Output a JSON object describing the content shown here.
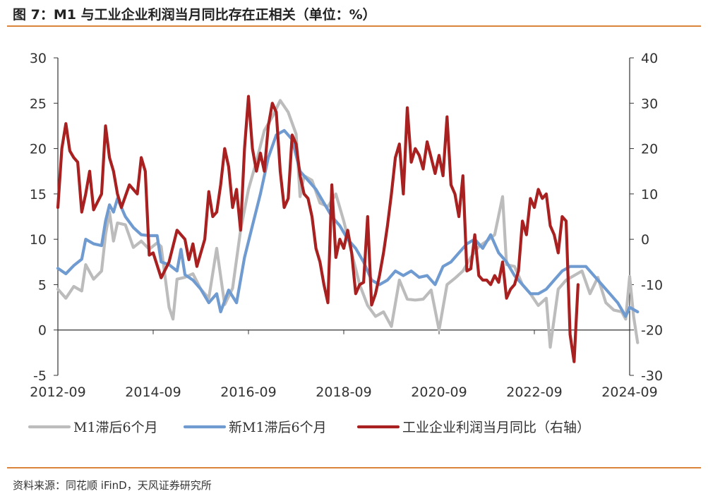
{
  "header": {
    "title": "图 7：M1 与工业企业利润当月同比存在正相关（单位：%）"
  },
  "footer": {
    "source": "资料来源：同花顺 iFinD，天风证券研究所"
  },
  "chart_data": {
    "type": "line",
    "title": "图 7：M1 与工业企业利润当月同比存在正相关（单位：%）",
    "xlabel": "",
    "ylabel": "",
    "x_ticks": [
      "2012-09",
      "2014-09",
      "2016-09",
      "2018-09",
      "2020-09",
      "2022-09",
      "2024-09"
    ],
    "x_range": [
      "2012-09",
      "2024-09"
    ],
    "ylim_left": [
      -5,
      30
    ],
    "ylim_right": [
      -30,
      40
    ],
    "y_ticks_left": [
      30,
      25,
      20,
      15,
      10,
      5,
      0,
      -5
    ],
    "y_ticks_right": [
      40,
      30,
      20,
      10,
      0,
      -10,
      -20,
      -30
    ],
    "grid": false,
    "legend_position": "bottom",
    "series": [
      {
        "name": "M1滞后6个月",
        "axis": "left",
        "color": "#bcbcbc",
        "points": [
          [
            "2012-09",
            4.5
          ],
          [
            "2012-11",
            3.5
          ],
          [
            "2013-01",
            4.8
          ],
          [
            "2013-03",
            4.3
          ],
          [
            "2013-04",
            7.2
          ],
          [
            "2013-06",
            5.6
          ],
          [
            "2013-08",
            6.5
          ],
          [
            "2013-09",
            10.5
          ],
          [
            "2013-10",
            13.0
          ],
          [
            "2013-11",
            9.8
          ],
          [
            "2013-12",
            11.8
          ],
          [
            "2014-02",
            11.6
          ],
          [
            "2014-04",
            9.1
          ],
          [
            "2014-06",
            9.8
          ],
          [
            "2014-08",
            8.9
          ],
          [
            "2014-10",
            9.6
          ],
          [
            "2014-11",
            9.2
          ],
          [
            "2015-01",
            2.5
          ],
          [
            "2015-02",
            1.2
          ],
          [
            "2015-03",
            5.6
          ],
          [
            "2015-05",
            5.8
          ],
          [
            "2015-07",
            6.2
          ],
          [
            "2015-09",
            4.5
          ],
          [
            "2015-11",
            3.5
          ],
          [
            "2016-01",
            9.0
          ],
          [
            "2016-03",
            2.8
          ],
          [
            "2016-05",
            4.6
          ],
          [
            "2016-07",
            11.0
          ],
          [
            "2016-09",
            15.5
          ],
          [
            "2016-11",
            18.6
          ],
          [
            "2017-01",
            22.0
          ],
          [
            "2017-03",
            23.5
          ],
          [
            "2017-05",
            25.3
          ],
          [
            "2017-07",
            24.0
          ],
          [
            "2017-09",
            21.6
          ],
          [
            "2017-10",
            14.7
          ],
          [
            "2017-11",
            17.0
          ],
          [
            "2018-01",
            16.5
          ],
          [
            "2018-03",
            14.0
          ],
          [
            "2018-05",
            13.6
          ],
          [
            "2018-07",
            15.0
          ],
          [
            "2018-09",
            12.0
          ],
          [
            "2018-11",
            8.5
          ],
          [
            "2019-01",
            5.0
          ],
          [
            "2019-03",
            2.7
          ],
          [
            "2019-05",
            1.5
          ],
          [
            "2019-07",
            2.0
          ],
          [
            "2019-09",
            0.4
          ],
          [
            "2019-11",
            5.5
          ],
          [
            "2020-01",
            3.4
          ],
          [
            "2020-03",
            3.3
          ],
          [
            "2020-05",
            3.4
          ],
          [
            "2020-07",
            4.4
          ],
          [
            "2020-09",
            0.0
          ],
          [
            "2020-11",
            5.0
          ],
          [
            "2021-01",
            5.7
          ],
          [
            "2021-03",
            6.5
          ],
          [
            "2021-05",
            8.0
          ],
          [
            "2021-07",
            9.2
          ],
          [
            "2021-09",
            9.8
          ],
          [
            "2021-11",
            10.5
          ],
          [
            "2022-01",
            14.7
          ],
          [
            "2022-02",
            7.2
          ],
          [
            "2022-04",
            7.0
          ],
          [
            "2022-06",
            5.0
          ],
          [
            "2022-08",
            4.0
          ],
          [
            "2022-10",
            2.7
          ],
          [
            "2022-12",
            3.5
          ],
          [
            "2023-01",
            -1.9
          ],
          [
            "2023-03",
            4.5
          ],
          [
            "2023-05",
            5.5
          ],
          [
            "2023-07",
            6.0
          ],
          [
            "2023-09",
            6.5
          ],
          [
            "2023-11",
            4.0
          ],
          [
            "2024-01",
            5.8
          ],
          [
            "2024-03",
            3.0
          ],
          [
            "2024-05",
            2.2
          ],
          [
            "2024-07",
            2.0
          ],
          [
            "2024-08",
            1.2
          ],
          [
            "2024-09",
            5.9
          ],
          [
            "2024-10",
            1.5
          ],
          [
            "2024-11",
            -1.4
          ]
        ]
      },
      {
        "name": "新M1滞后6个月",
        "axis": "left",
        "color": "#6f9bd1",
        "points": [
          [
            "2012-09",
            6.8
          ],
          [
            "2012-11",
            6.2
          ],
          [
            "2013-01",
            7.1
          ],
          [
            "2013-03",
            7.8
          ],
          [
            "2013-04",
            10.0
          ],
          [
            "2013-06",
            9.5
          ],
          [
            "2013-08",
            9.3
          ],
          [
            "2013-09",
            12.0
          ],
          [
            "2013-10",
            13.8
          ],
          [
            "2013-11",
            13.0
          ],
          [
            "2013-12",
            14.5
          ],
          [
            "2014-02",
            12.5
          ],
          [
            "2014-04",
            11.3
          ],
          [
            "2014-06",
            10.5
          ],
          [
            "2014-08",
            10.4
          ],
          [
            "2014-10",
            10.4
          ],
          [
            "2014-11",
            7.5
          ],
          [
            "2015-01",
            7.2
          ],
          [
            "2015-03",
            6.5
          ],
          [
            "2015-04",
            8.9
          ],
          [
            "2015-05",
            6.1
          ],
          [
            "2015-07",
            5.5
          ],
          [
            "2015-09",
            4.5
          ],
          [
            "2015-11",
            3.0
          ],
          [
            "2016-01",
            4.0
          ],
          [
            "2016-02",
            2.0
          ],
          [
            "2016-04",
            4.4
          ],
          [
            "2016-06",
            3.0
          ],
          [
            "2016-08",
            8.0
          ],
          [
            "2016-10",
            11.5
          ],
          [
            "2016-12",
            15.0
          ],
          [
            "2017-02",
            19.0
          ],
          [
            "2017-04",
            21.5
          ],
          [
            "2017-06",
            22.0
          ],
          [
            "2017-08",
            21.0
          ],
          [
            "2017-10",
            17.5
          ],
          [
            "2017-12",
            16.5
          ],
          [
            "2018-02",
            15.5
          ],
          [
            "2018-04",
            14.0
          ],
          [
            "2018-06",
            12.5
          ],
          [
            "2018-08",
            11.5
          ],
          [
            "2018-10",
            10.0
          ],
          [
            "2018-12",
            9.0
          ],
          [
            "2019-02",
            7.5
          ],
          [
            "2019-04",
            5.5
          ],
          [
            "2019-06",
            5.0
          ],
          [
            "2019-08",
            5.5
          ],
          [
            "2019-10",
            6.5
          ],
          [
            "2019-12",
            6.0
          ],
          [
            "2020-02",
            6.5
          ],
          [
            "2020-04",
            5.8
          ],
          [
            "2020-06",
            6.0
          ],
          [
            "2020-08",
            5.0
          ],
          [
            "2020-10",
            7.0
          ],
          [
            "2020-12",
            7.5
          ],
          [
            "2021-02",
            8.5
          ],
          [
            "2021-04",
            9.5
          ],
          [
            "2021-06",
            10.0
          ],
          [
            "2021-08",
            9.0
          ],
          [
            "2021-10",
            10.5
          ],
          [
            "2021-12",
            8.5
          ],
          [
            "2022-02",
            7.5
          ],
          [
            "2022-04",
            6.0
          ],
          [
            "2022-06",
            5.0
          ],
          [
            "2022-08",
            4.0
          ],
          [
            "2022-10",
            4.0
          ],
          [
            "2022-12",
            4.5
          ],
          [
            "2023-02",
            5.5
          ],
          [
            "2023-04",
            6.5
          ],
          [
            "2023-06",
            7.0
          ],
          [
            "2023-08",
            7.0
          ],
          [
            "2023-10",
            7.0
          ],
          [
            "2023-12",
            6.0
          ],
          [
            "2024-02",
            5.0
          ],
          [
            "2024-04",
            4.0
          ],
          [
            "2024-06",
            3.0
          ],
          [
            "2024-08",
            1.5
          ],
          [
            "2024-09",
            2.5
          ],
          [
            "2024-11",
            2.0
          ]
        ]
      },
      {
        "name": "工业企业利润当月同比（右轴）",
        "axis": "right",
        "color": "#a82020",
        "points": [
          [
            "2012-09",
            7.0
          ],
          [
            "2012-10",
            20.0
          ],
          [
            "2012-11",
            25.5
          ],
          [
            "2012-12",
            19.5
          ],
          [
            "2013-01",
            18.0
          ],
          [
            "2013-02",
            17.0
          ],
          [
            "2013-03",
            6.0
          ],
          [
            "2013-04",
            10.0
          ],
          [
            "2013-05",
            15.0
          ],
          [
            "2013-06",
            6.5
          ],
          [
            "2013-08",
            10.0
          ],
          [
            "2013-09",
            25.0
          ],
          [
            "2013-10",
            18.0
          ],
          [
            "2013-11",
            15.0
          ],
          [
            "2013-12",
            10.0
          ],
          [
            "2014-01",
            7.0
          ],
          [
            "2014-03",
            12.0
          ],
          [
            "2014-05",
            10.0
          ],
          [
            "2014-06",
            18.0
          ],
          [
            "2014-07",
            15.0
          ],
          [
            "2014-08",
            -3.5
          ],
          [
            "2014-09",
            -3.0
          ],
          [
            "2014-11",
            -8.5
          ],
          [
            "2015-01",
            -5.0
          ],
          [
            "2015-03",
            2.0
          ],
          [
            "2015-05",
            0.0
          ],
          [
            "2015-06",
            -4.5
          ],
          [
            "2015-07",
            -1.0
          ],
          [
            "2015-08",
            -6.0
          ],
          [
            "2015-10",
            0.0
          ],
          [
            "2015-11",
            10.5
          ],
          [
            "2015-12",
            5.0
          ],
          [
            "2016-01",
            6.0
          ],
          [
            "2016-02",
            12.0
          ],
          [
            "2016-03",
            20.0
          ],
          [
            "2016-04",
            16.0
          ],
          [
            "2016-05",
            7.0
          ],
          [
            "2016-06",
            11.0
          ],
          [
            "2016-07",
            2.0
          ],
          [
            "2016-08",
            20.0
          ],
          [
            "2016-09",
            31.5
          ],
          [
            "2016-10",
            20.0
          ],
          [
            "2016-11",
            15.0
          ],
          [
            "2016-12",
            19.0
          ],
          [
            "2017-01",
            15.0
          ],
          [
            "2017-02",
            25.0
          ],
          [
            "2017-03",
            30.0
          ],
          [
            "2017-04",
            28.0
          ],
          [
            "2017-05",
            15.0
          ],
          [
            "2017-06",
            7.0
          ],
          [
            "2017-07",
            9.0
          ],
          [
            "2017-08",
            23.0
          ],
          [
            "2017-09",
            21.0
          ],
          [
            "2017-10",
            14.0
          ],
          [
            "2017-11",
            10.0
          ],
          [
            "2017-12",
            9.0
          ],
          [
            "2018-01",
            5.0
          ],
          [
            "2018-02",
            -2.0
          ],
          [
            "2018-03",
            -5.0
          ],
          [
            "2018-04",
            -10.0
          ],
          [
            "2018-05",
            -14.0
          ],
          [
            "2018-06",
            12.0
          ],
          [
            "2018-07",
            -4.0
          ],
          [
            "2018-08",
            0.0
          ],
          [
            "2018-09",
            -2.0
          ],
          [
            "2018-10",
            2.0
          ],
          [
            "2018-11",
            -3.0
          ],
          [
            "2018-12",
            -12.0
          ],
          [
            "2019-01",
            -10.0
          ],
          [
            "2019-02",
            -9.5
          ],
          [
            "2019-03",
            5.0
          ],
          [
            "2019-04",
            -14.5
          ],
          [
            "2019-05",
            -12.0
          ],
          [
            "2019-06",
            -8.0
          ],
          [
            "2019-07",
            -3.0
          ],
          [
            "2019-08",
            3.0
          ],
          [
            "2019-09",
            10.0
          ],
          [
            "2019-10",
            18.0
          ],
          [
            "2019-11",
            21.0
          ],
          [
            "2019-12",
            10.0
          ],
          [
            "2020-01",
            29.0
          ],
          [
            "2020-02",
            17.0
          ],
          [
            "2020-03",
            20.0
          ],
          [
            "2020-04",
            18.5
          ],
          [
            "2020-05",
            15.5
          ],
          [
            "2020-06",
            21.5
          ],
          [
            "2020-07",
            18.0
          ],
          [
            "2020-08",
            14.5
          ],
          [
            "2020-09",
            18.5
          ],
          [
            "2020-10",
            14.0
          ],
          [
            "2020-11",
            27.0
          ],
          [
            "2020-12",
            12.0
          ],
          [
            "2021-01",
            10.0
          ],
          [
            "2021-02",
            5.0
          ],
          [
            "2021-03",
            14.0
          ],
          [
            "2021-04",
            -7.0
          ],
          [
            "2021-05",
            -6.5
          ],
          [
            "2021-06",
            1.0
          ],
          [
            "2021-07",
            -8.0
          ],
          [
            "2021-08",
            -9.0
          ],
          [
            "2021-09",
            -9.0
          ],
          [
            "2021-10",
            -10.0
          ],
          [
            "2021-11",
            -8.0
          ],
          [
            "2021-12",
            -9.5
          ],
          [
            "2022-01",
            -5.0
          ],
          [
            "2022-02",
            -13.0
          ],
          [
            "2022-03",
            -11.0
          ],
          [
            "2022-04",
            -10.0
          ],
          [
            "2022-05",
            -7.0
          ],
          [
            "2022-06",
            4.0
          ],
          [
            "2022-07",
            1.0
          ],
          [
            "2022-08",
            9.0
          ],
          [
            "2022-09",
            7.0
          ],
          [
            "2022-10",
            11.0
          ],
          [
            "2022-11",
            9.0
          ],
          [
            "2022-12",
            10.0
          ],
          [
            "2023-01",
            3.0
          ],
          [
            "2023-02",
            1.0
          ],
          [
            "2023-03",
            -3.0
          ],
          [
            "2023-04",
            5.0
          ],
          [
            "2023-05",
            4.0
          ],
          [
            "2023-06",
            -21.0
          ],
          [
            "2023-07",
            -27.0
          ],
          [
            "2023-08",
            -10.0
          ]
        ]
      }
    ]
  }
}
